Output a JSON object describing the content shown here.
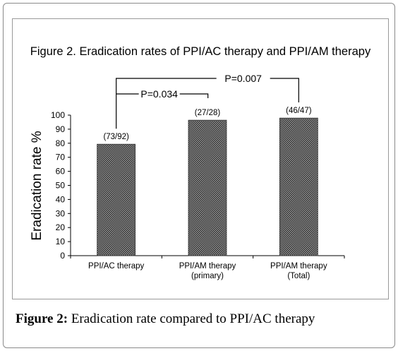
{
  "caption": {
    "label": "Figure 2:",
    "text": " Eradication rate compared to PPI/AC therapy"
  },
  "chart_data": {
    "type": "bar",
    "title": "Figure 2. Eradication rates of PPI/AC therapy and PPI/AM therapy",
    "ylabel": "Eradication rate %",
    "xlabel": "",
    "ylim": [
      0,
      100
    ],
    "yticks": [
      0,
      10,
      20,
      30,
      40,
      50,
      60,
      70,
      80,
      90,
      100
    ],
    "categories": [
      [
        "PPI/AC therapy"
      ],
      [
        "PPI/AM therapy",
        "(primary)"
      ],
      [
        "PPI/AM therapy",
        "(Total)"
      ]
    ],
    "values": [
      79.3,
      96.4,
      97.9
    ],
    "data_labels": [
      "(73/92)",
      "(27/28)",
      "(46/47)"
    ],
    "bar_fill": "#555555",
    "grid": false,
    "comparisons": [
      {
        "from": 0,
        "to": 1,
        "label": "P=0.034"
      },
      {
        "from": 0,
        "to": 2,
        "label": "P=0.007"
      }
    ]
  }
}
